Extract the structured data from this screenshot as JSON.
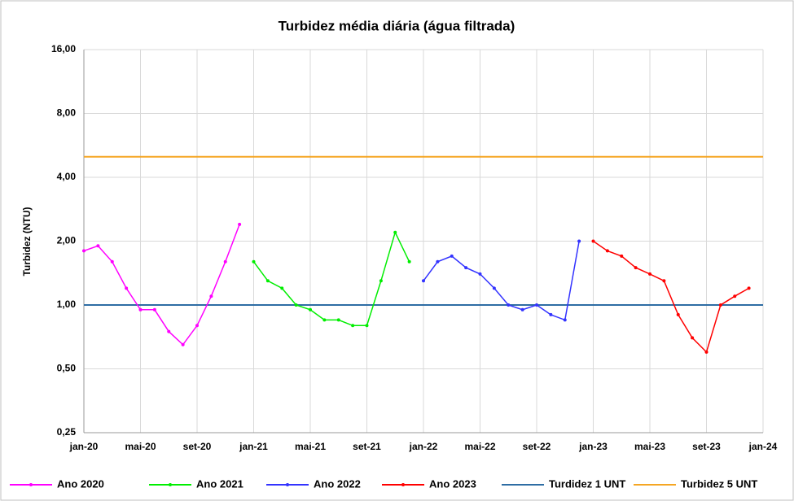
{
  "chart_data": {
    "type": "line",
    "title": "Turbidez média diária (água filtrada)",
    "y_label": "Turbidez (NTU)",
    "log_scale_y": true,
    "grid": true,
    "legend": "bottom",
    "x": [
      "2020-01",
      "2020-02",
      "2020-03",
      "2020-04",
      "2020-05",
      "2020-06",
      "2020-07",
      "2020-08",
      "2020-09",
      "2020-10",
      "2020-11",
      "2020-12",
      "2021-01",
      "2021-02",
      "2021-03",
      "2021-04",
      "2021-05",
      "2021-06",
      "2021-07",
      "2021-08",
      "2021-09",
      "2021-10",
      "2021-11",
      "2021-12",
      "2022-01",
      "2022-02",
      "2022-03",
      "2022-04",
      "2022-05",
      "2022-06",
      "2022-07",
      "2022-08",
      "2022-09",
      "2022-10",
      "2022-11",
      "2022-12",
      "2023-01",
      "2023-02",
      "2023-03",
      "2023-04",
      "2023-05",
      "2023-06",
      "2023-07",
      "2023-08",
      "2023-09",
      "2023-10",
      "2023-11",
      "2023-12"
    ],
    "xlim": [
      "2020-01",
      "2024-01"
    ],
    "xticks": [
      {
        "value": "2020-01",
        "label": "jan-20"
      },
      {
        "value": "2020-05",
        "label": "mai-20"
      },
      {
        "value": "2020-09",
        "label": "set-20"
      },
      {
        "value": "2021-01",
        "label": "jan-21"
      },
      {
        "value": "2021-05",
        "label": "mai-21"
      },
      {
        "value": "2021-09",
        "label": "set-21"
      },
      {
        "value": "2022-01",
        "label": "jan-22"
      },
      {
        "value": "2022-05",
        "label": "mai-22"
      },
      {
        "value": "2022-09",
        "label": "set-22"
      },
      {
        "value": "2023-01",
        "label": "jan-23"
      },
      {
        "value": "2023-05",
        "label": "mai-23"
      },
      {
        "value": "2023-09",
        "label": "set-23"
      },
      {
        "value": "2024-01",
        "label": "jan-24"
      }
    ],
    "ylim": [
      0.25,
      16
    ],
    "yticks": [
      {
        "value": 0.25,
        "label": "0,25"
      },
      {
        "value": 0.5,
        "label": "0,50"
      },
      {
        "value": 1,
        "label": "1,00"
      },
      {
        "value": 2,
        "label": "2,00"
      },
      {
        "value": 4,
        "label": "4,00"
      },
      {
        "value": 8,
        "label": "8,00"
      },
      {
        "value": 16,
        "label": "16,00"
      }
    ],
    "series": [
      {
        "name": "Ano 2020",
        "color": "#ff00ff",
        "values": [
          1.8,
          1.9,
          1.6,
          1.2,
          0.95,
          0.95,
          0.75,
          0.65,
          0.8,
          1.1,
          1.6,
          2.4,
          null,
          null,
          null,
          null,
          null,
          null,
          null,
          null,
          null,
          null,
          null,
          null,
          null,
          null,
          null,
          null,
          null,
          null,
          null,
          null,
          null,
          null,
          null,
          null,
          null,
          null,
          null,
          null,
          null,
          null,
          null,
          null,
          null,
          null,
          null,
          null
        ]
      },
      {
        "name": "Ano 2021",
        "color": "#00ee00",
        "values": [
          null,
          null,
          null,
          null,
          null,
          null,
          null,
          null,
          null,
          null,
          null,
          null,
          1.6,
          1.3,
          1.2,
          1.0,
          0.95,
          0.85,
          0.85,
          0.8,
          0.8,
          1.3,
          2.2,
          1.6,
          null,
          null,
          null,
          null,
          null,
          null,
          null,
          null,
          null,
          null,
          null,
          null,
          null,
          null,
          null,
          null,
          null,
          null,
          null,
          null,
          null,
          null,
          null,
          null
        ]
      },
      {
        "name": "Ano 2022",
        "color": "#3333ff",
        "values": [
          null,
          null,
          null,
          null,
          null,
          null,
          null,
          null,
          null,
          null,
          null,
          null,
          null,
          null,
          null,
          null,
          null,
          null,
          null,
          null,
          null,
          null,
          null,
          null,
          1.3,
          1.6,
          1.7,
          1.5,
          1.4,
          1.2,
          1.0,
          0.95,
          1.0,
          0.9,
          0.85,
          2.0,
          null,
          null,
          null,
          null,
          null,
          null,
          null,
          null,
          null,
          null,
          null,
          null
        ]
      },
      {
        "name": "Ano 2023",
        "color": "#ff0000",
        "values": [
          null,
          null,
          null,
          null,
          null,
          null,
          null,
          null,
          null,
          null,
          null,
          null,
          null,
          null,
          null,
          null,
          null,
          null,
          null,
          null,
          null,
          null,
          null,
          null,
          null,
          null,
          null,
          null,
          null,
          null,
          null,
          null,
          null,
          null,
          null,
          null,
          2.0,
          1.8,
          1.7,
          1.5,
          1.4,
          1.3,
          0.9,
          0.7,
          0.6,
          1.0,
          1.1,
          1.2
        ]
      }
    ],
    "reference_lines": [
      {
        "name": "Turdidez 1 UNT",
        "color": "#2e6da4",
        "value": 1
      },
      {
        "name": "Turbidez 5 UNT",
        "color": "#f5a623",
        "value": 5
      }
    ]
  }
}
